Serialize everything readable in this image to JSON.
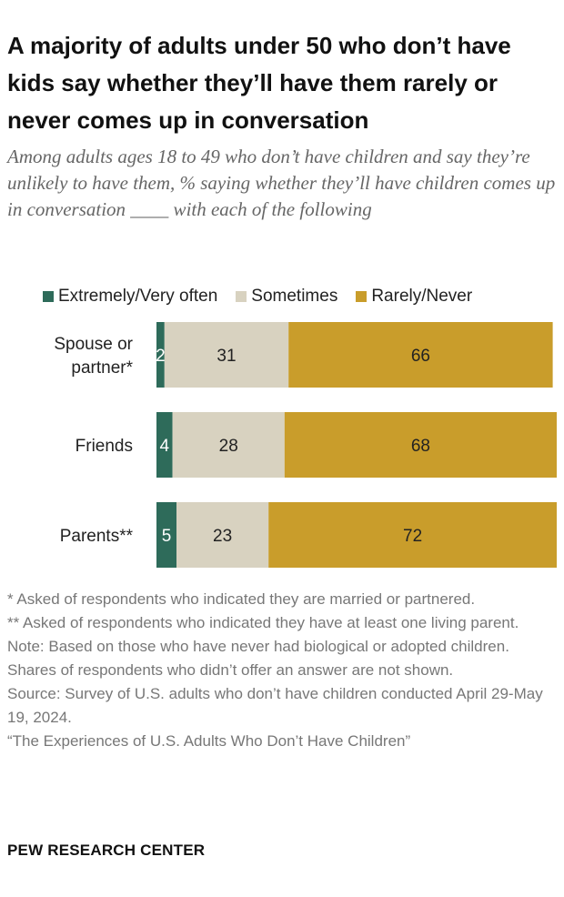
{
  "title": "A majority of adults under 50 who don’t have kids say whether they’ll have them rarely or never comes up in conversation",
  "subtitle": "Among adults ages 18 to 49 who don’t have children and say they’re unlikely to have them, % saying whether they’ll have children comes up in conversation ____ with each of the following",
  "chart_data": {
    "type": "bar",
    "orientation": "horizontal",
    "stacked": true,
    "categories": [
      "Spouse or partner*",
      "Friends",
      "Parents**"
    ],
    "series": [
      {
        "name": "Extremely/Very often",
        "color": "#2e6b5a",
        "values": [
          2,
          4,
          5
        ]
      },
      {
        "name": "Sometimes",
        "color": "#d8d2c0",
        "values": [
          31,
          28,
          23
        ]
      },
      {
        "name": "Rarely/Never",
        "color": "#c99d2b",
        "values": [
          66,
          68,
          72
        ]
      }
    ],
    "xlim": [
      0,
      100
    ],
    "legend_position": "top",
    "grid": false
  },
  "notes": {
    "n1": "* Asked of respondents who indicated they are married or partnered.",
    "n2": "** Asked of respondents who indicated they have at least one living parent.",
    "n3": "Note: Based on those who have never had biological or adopted children. Shares of respondents who didn’t offer an answer are not shown.",
    "n4": "Source: Survey of U.S. adults who don’t have children conducted April 29-May 19, 2024.",
    "n5": "“The Experiences of U.S. Adults Who Don’t Have Children”"
  },
  "brand": "PEW RESEARCH CENTER"
}
